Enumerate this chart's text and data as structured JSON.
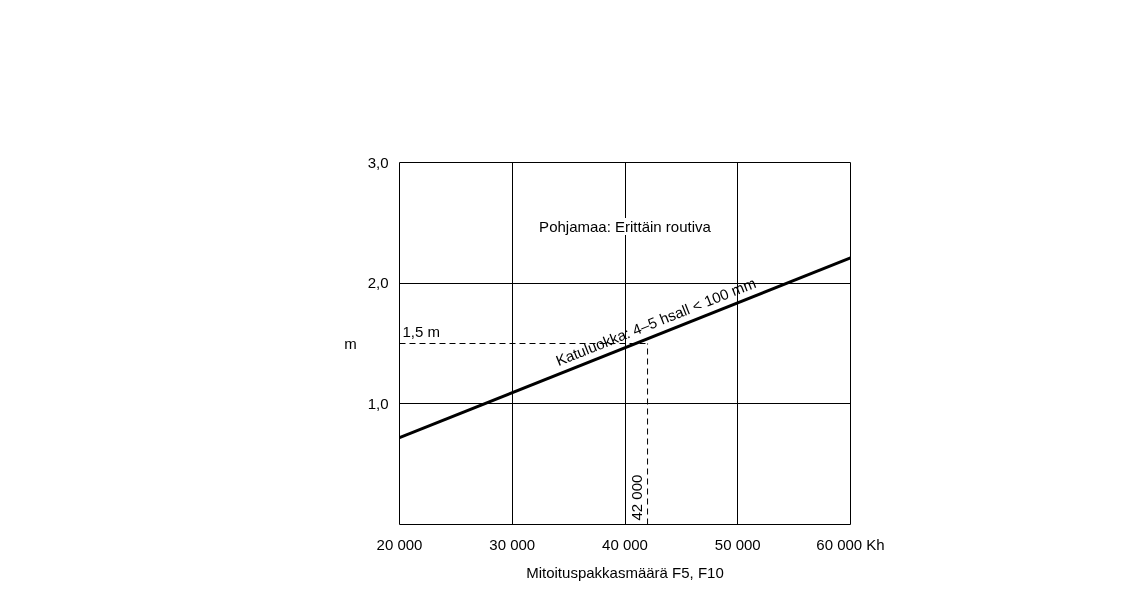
{
  "chart_data": {
    "type": "line",
    "xlabel": "Mitoituspakkasmäärä F5, F10",
    "ylabel": "m",
    "xlim": [
      20000,
      60000
    ],
    "ylim": [
      0,
      3
    ],
    "xticks": [
      {
        "value": 20000,
        "label": "20 000"
      },
      {
        "value": 30000,
        "label": "30 000"
      },
      {
        "value": 40000,
        "label": "40 000"
      },
      {
        "value": 50000,
        "label": "50 000"
      },
      {
        "value": 60000,
        "label": "60 000 Kh"
      }
    ],
    "yticks": [
      {
        "value": 1,
        "label": "1,0"
      },
      {
        "value": 2,
        "label": "2,0"
      },
      {
        "value": 3,
        "label": "3,0"
      }
    ],
    "series": [
      {
        "color": "#000000",
        "x": [
          20000,
          60000
        ],
        "values": [
          0.72,
          2.21
        ]
      }
    ],
    "ref_lines": [
      {
        "axis": "y",
        "value": 1.5,
        "label": "1,5 m",
        "line_style": "dashed",
        "color": "#000000"
      },
      {
        "axis": "x",
        "value": 42000,
        "label": "42 000",
        "line_style": "dashed",
        "color": "#000000"
      }
    ],
    "annotations": [
      "Pohjamaa: Erittäin routiva",
      {
        "text": "Katuluokka: 4–5 hsall < 100 mm",
        "x": 43000,
        "y": 1.6
      }
    ],
    "grid": true,
    "line_style": "solid",
    "marker": "none"
  }
}
